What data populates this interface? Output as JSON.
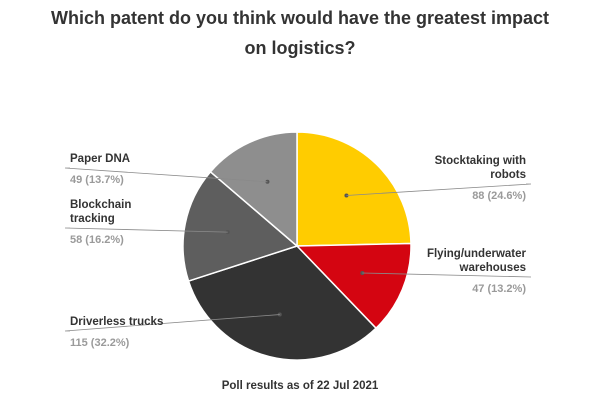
{
  "chart_data": {
    "type": "pie",
    "title_lines": [
      "Which patent do you think would have the greatest impact",
      "on logistics?"
    ],
    "slices": [
      {
        "label_lines": [
          "Stocktaking with",
          "robots"
        ],
        "value": 88,
        "value_text": "88 (24.6%)",
        "color": "#FFCC00",
        "side": "right"
      },
      {
        "label_lines": [
          "Flying/underwater",
          "warehouses"
        ],
        "value": 47,
        "value_text": "47 (13.2%)",
        "color": "#D40511",
        "side": "right"
      },
      {
        "label_lines": [
          "Driverless trucks"
        ],
        "value": 115,
        "value_text": "115 (32.2%)",
        "color": "#333333",
        "side": "left"
      },
      {
        "label_lines": [
          "Blockchain",
          "tracking"
        ],
        "value": 58,
        "value_text": "58 (16.2%)",
        "color": "#5E5E5E",
        "side": "left"
      },
      {
        "label_lines": [
          "Paper DNA"
        ],
        "value": 49,
        "value_text": "49 (13.7%)",
        "color": "#8E8E8E",
        "side": "left"
      }
    ],
    "start_angle": "12 o'clock",
    "direction": "clockwise"
  },
  "footnote": "Poll results as of 22 Jul 2021"
}
